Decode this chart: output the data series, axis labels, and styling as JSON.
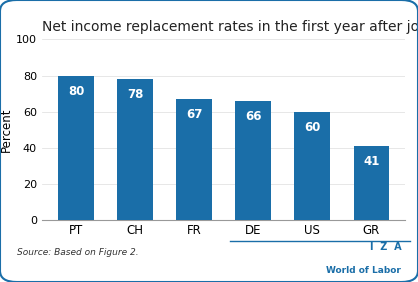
{
  "title": "Net income replacement rates in the first year after job loss",
  "categories": [
    "PT",
    "CH",
    "FR",
    "DE",
    "US",
    "GR"
  ],
  "values": [
    80,
    78,
    67,
    66,
    60,
    41
  ],
  "bar_color": "#1a6ea8",
  "ylabel": "Percent",
  "ylim": [
    0,
    100
  ],
  "yticks": [
    0,
    20,
    40,
    60,
    80,
    100
  ],
  "label_color": "#ffffff",
  "label_fontsize": 8.5,
  "title_fontsize": 10,
  "ylabel_fontsize": 8.5,
  "xtick_fontsize": 8.5,
  "ytick_fontsize": 8,
  "source_text": "Source: Based on Figure 2.",
  "iza_text": "I  Z  A",
  "wol_text": "World of Labor",
  "iza_color": "#1a6ea8",
  "border_color": "#1a6ea8",
  "background_color": "#ffffff"
}
